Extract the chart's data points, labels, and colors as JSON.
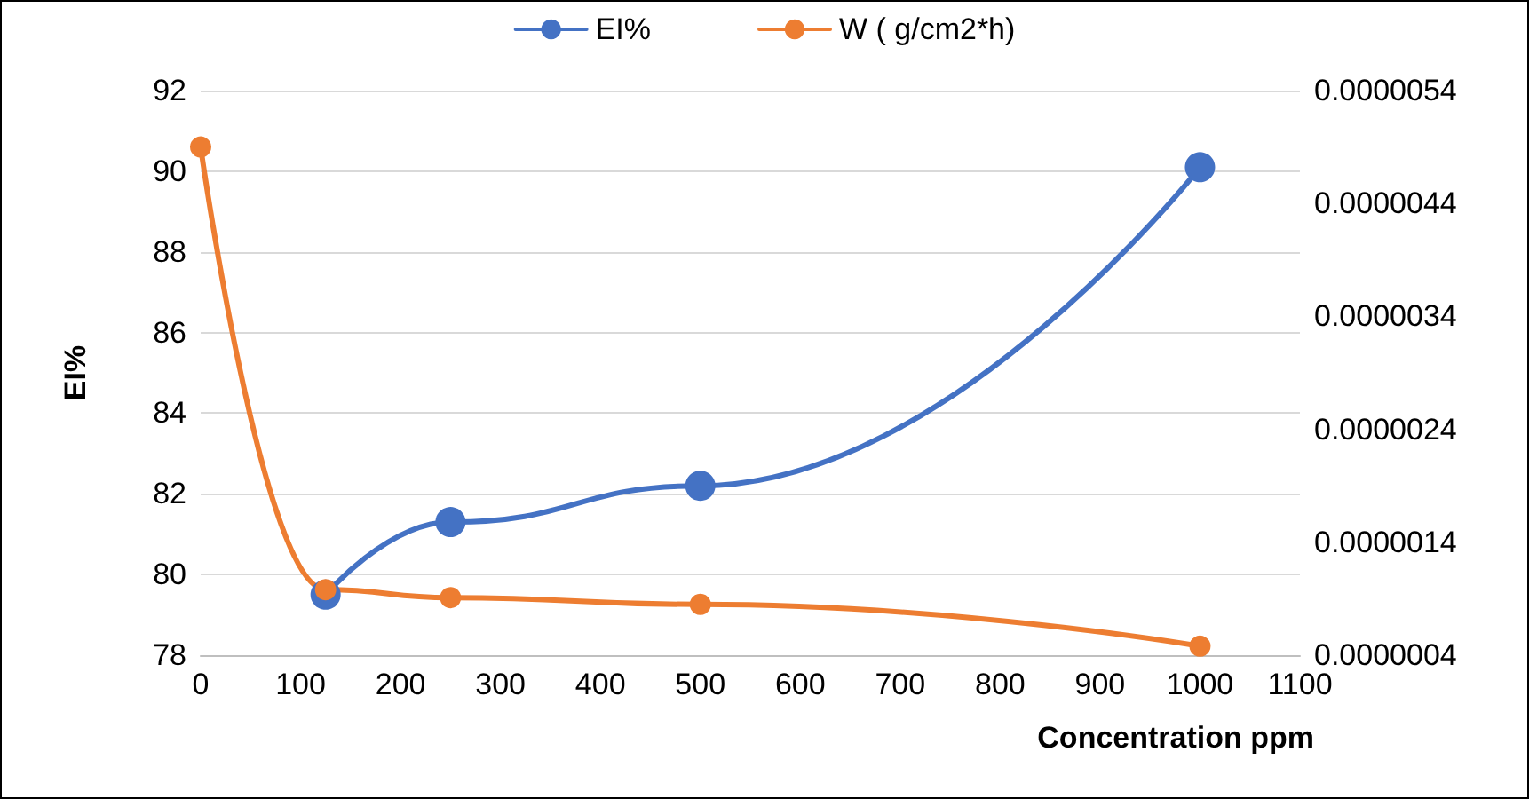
{
  "chart_data": {
    "type": "line",
    "xlabel": "Concentration ppm",
    "ylabel": "EI%",
    "series": [
      {
        "name": "EI%",
        "color": "#4472c4",
        "x": [
          125,
          250,
          500,
          1000
        ],
        "values": [
          79.5,
          81.3,
          82.2,
          90.1
        ]
      },
      {
        "name": "W ( g/cm2*h)",
        "color": "#ed7d31",
        "axis": "y2",
        "x": [
          0,
          125,
          250,
          500,
          1000
        ],
        "values": [
          4.9e-06,
          9.8e-07,
          9.1e-07,
          8.5e-07,
          4.8e-07
        ]
      }
    ],
    "xlim": [
      0,
      1100
    ],
    "xticks": [
      0,
      100,
      200,
      300,
      400,
      500,
      600,
      700,
      800,
      900,
      1000,
      1100
    ],
    "ylim": [
      78,
      92
    ],
    "yticks": [
      78,
      80,
      82,
      84,
      86,
      88,
      90,
      92
    ],
    "y2lim": [
      4e-07,
      5.4e-06
    ],
    "y2ticks": [
      {
        "value": 4e-07,
        "label": "0.0000004"
      },
      {
        "value": 1.4e-06,
        "label": "0.0000014"
      },
      {
        "value": 2.4e-06,
        "label": "0.0000024"
      },
      {
        "value": 3.4e-06,
        "label": "0.0000034"
      },
      {
        "value": 4.4e-06,
        "label": "0.0000044"
      },
      {
        "value": 5.4e-06,
        "label": "0.0000054"
      }
    ],
    "grid": "y",
    "legend": "top",
    "marker": "circle",
    "line_style": "solid"
  }
}
